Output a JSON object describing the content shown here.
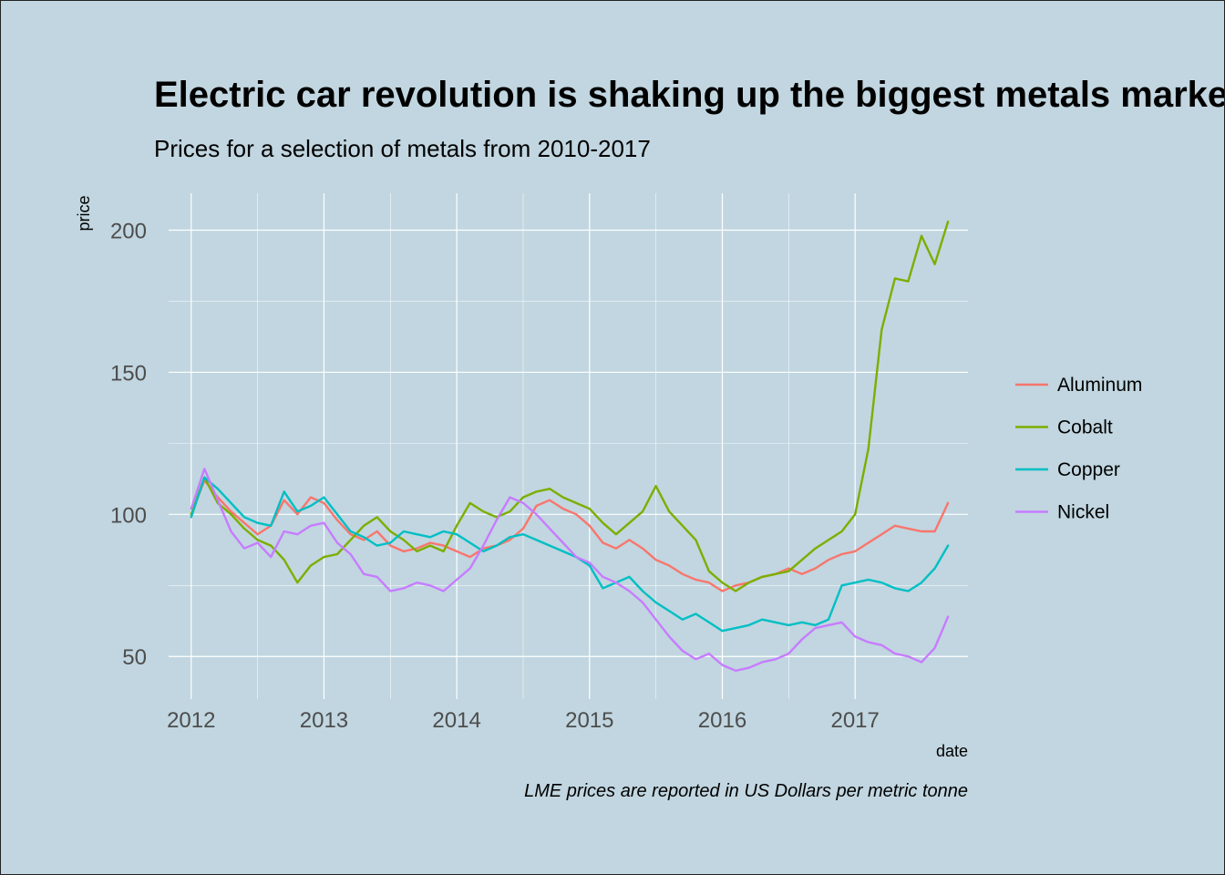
{
  "chart_data": {
    "type": "line",
    "title": "Electric car revolution is shaking up the biggest metals markets",
    "subtitle": "Prices for a selection of metals from 2010-2017",
    "xlabel": "date",
    "ylabel": "price",
    "caption": "LME prices are reported in US Dollars per metric tonne",
    "xlim": [
      2011.83,
      2017.85
    ],
    "ylim": [
      35,
      213
    ],
    "x_ticks": [
      2012,
      2013,
      2014,
      2015,
      2016,
      2017
    ],
    "x_tick_labels": [
      "2012",
      "2013",
      "2014",
      "2015",
      "2016",
      "2017"
    ],
    "y_ticks": [
      50,
      100,
      150,
      200
    ],
    "y_tick_labels": [
      "50",
      "100",
      "150",
      "200"
    ],
    "grid": true,
    "legend_position": "right",
    "x": [
      2012.0,
      2012.1,
      2012.2,
      2012.3,
      2012.4,
      2012.5,
      2012.6,
      2012.7,
      2012.8,
      2012.9,
      2013.0,
      2013.1,
      2013.2,
      2013.3,
      2013.4,
      2013.5,
      2013.6,
      2013.7,
      2013.8,
      2013.9,
      2014.0,
      2014.1,
      2014.2,
      2014.3,
      2014.4,
      2014.5,
      2014.6,
      2014.7,
      2014.8,
      2014.9,
      2015.0,
      2015.1,
      2015.2,
      2015.3,
      2015.4,
      2015.5,
      2015.6,
      2015.7,
      2015.8,
      2015.9,
      2016.0,
      2016.1,
      2016.2,
      2016.3,
      2016.4,
      2016.5,
      2016.6,
      2016.7,
      2016.8,
      2016.9,
      2017.0,
      2017.1,
      2017.2,
      2017.3,
      2017.4,
      2017.5,
      2017.6,
      2017.7
    ],
    "series": [
      {
        "name": "Aluminum",
        "color": "#f8766d",
        "values": [
          100,
          112,
          106,
          101,
          97,
          93,
          96,
          105,
          100,
          106,
          104,
          98,
          93,
          91,
          94,
          89,
          87,
          88,
          90,
          89,
          87,
          85,
          88,
          89,
          91,
          95,
          103,
          105,
          102,
          100,
          96,
          90,
          88,
          91,
          88,
          84,
          82,
          79,
          77,
          76,
          73,
          75,
          76,
          78,
          79,
          81,
          79,
          81,
          84,
          86,
          87,
          90,
          93,
          96,
          95,
          94,
          94,
          104
        ]
      },
      {
        "name": "Cobalt",
        "color": "#7cae00",
        "values": [
          100,
          113,
          104,
          100,
          95,
          91,
          89,
          84,
          76,
          82,
          85,
          86,
          91,
          96,
          99,
          94,
          91,
          87,
          89,
          87,
          96,
          104,
          101,
          99,
          101,
          106,
          108,
          109,
          106,
          104,
          102,
          97,
          93,
          97,
          101,
          110,
          101,
          96,
          91,
          80,
          76,
          73,
          76,
          78,
          79,
          80,
          84,
          88,
          91,
          94,
          100,
          123,
          165,
          183,
          182,
          198,
          188,
          203
        ]
      },
      {
        "name": "Copper",
        "color": "#00bfc4",
        "values": [
          99,
          113,
          109,
          104,
          99,
          97,
          96,
          108,
          101,
          103,
          106,
          100,
          94,
          92,
          89,
          90,
          94,
          93,
          92,
          94,
          93,
          90,
          87,
          89,
          92,
          93,
          91,
          89,
          87,
          85,
          82,
          74,
          76,
          78,
          73,
          69,
          66,
          63,
          65,
          62,
          59,
          60,
          61,
          63,
          62,
          61,
          62,
          61,
          63,
          75,
          76,
          77,
          76,
          74,
          73,
          76,
          81,
          89
        ]
      },
      {
        "name": "Nickel",
        "color": "#c77cff",
        "values": [
          102,
          116,
          105,
          94,
          88,
          90,
          85,
          94,
          93,
          96,
          97,
          90,
          86,
          79,
          78,
          73,
          74,
          76,
          75,
          73,
          77,
          81,
          89,
          98,
          106,
          104,
          100,
          95,
          90,
          85,
          83,
          78,
          76,
          73,
          69,
          63,
          57,
          52,
          49,
          51,
          47,
          45,
          46,
          48,
          49,
          51,
          56,
          60,
          61,
          62,
          57,
          55,
          54,
          51,
          50,
          48,
          53,
          64
        ]
      }
    ]
  }
}
